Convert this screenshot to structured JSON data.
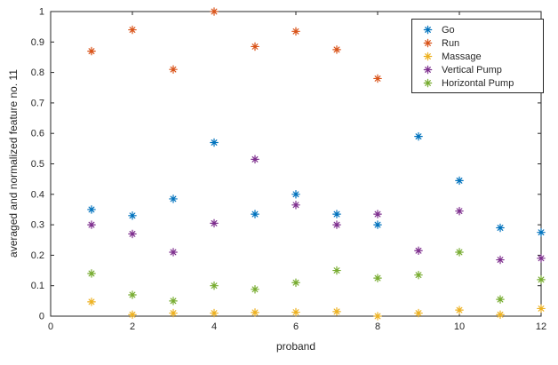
{
  "figure": {
    "background": "#ffffff",
    "axis_color": "#262626",
    "text_color": "#262626"
  },
  "chart_data": {
    "type": "scatter",
    "title": "",
    "xlabel": "proband",
    "ylabel": "averaged and normalized feature no. 11",
    "xlim": [
      0,
      12
    ],
    "ylim": [
      0,
      1
    ],
    "xticks": [
      0,
      2,
      4,
      6,
      8,
      10,
      12
    ],
    "yticks": [
      0,
      0.1,
      0.2,
      0.3,
      0.4,
      0.5,
      0.6,
      0.7,
      0.8,
      0.9,
      1
    ],
    "grid": false,
    "marker": "asterisk",
    "legend": {
      "position": "top-right-inside",
      "border_color": "#262626",
      "background": "#ffffff"
    },
    "series": [
      {
        "name": "Go",
        "color": "#0072BD",
        "x": [
          1,
          2,
          3,
          4,
          5,
          6,
          7,
          8,
          9,
          10,
          11,
          12
        ],
        "y": [
          0.35,
          0.33,
          0.385,
          0.57,
          0.335,
          0.4,
          0.335,
          0.3,
          0.59,
          0.445,
          0.29,
          0.275
        ]
      },
      {
        "name": "Run",
        "color": "#D95319",
        "x": [
          1,
          2,
          3,
          4,
          5,
          6,
          7,
          8
        ],
        "y": [
          0.87,
          0.94,
          0.81,
          1.0,
          0.885,
          0.935,
          0.875,
          0.78
        ]
      },
      {
        "name": "Massage",
        "color": "#EDB120",
        "x": [
          1,
          2,
          3,
          4,
          5,
          6,
          7,
          8,
          9,
          10,
          11,
          12
        ],
        "y": [
          0.047,
          0.005,
          0.01,
          0.01,
          0.012,
          0.013,
          0.015,
          0.0,
          0.01,
          0.02,
          0.005,
          0.025
        ]
      },
      {
        "name": "Vertical Pump",
        "color": "#7E2F8E",
        "x": [
          1,
          2,
          3,
          4,
          5,
          6,
          7,
          8,
          9,
          10,
          11,
          12
        ],
        "y": [
          0.3,
          0.27,
          0.21,
          0.305,
          0.515,
          0.365,
          0.3,
          0.335,
          0.215,
          0.345,
          0.185,
          0.19
        ]
      },
      {
        "name": "Horizontal Pump",
        "color": "#77AC30",
        "x": [
          1,
          2,
          3,
          4,
          5,
          6,
          7,
          8,
          9,
          10,
          11,
          12
        ],
        "y": [
          0.14,
          0.07,
          0.05,
          0.1,
          0.088,
          0.11,
          0.15,
          0.125,
          0.135,
          0.21,
          0.055,
          0.12
        ]
      }
    ]
  }
}
